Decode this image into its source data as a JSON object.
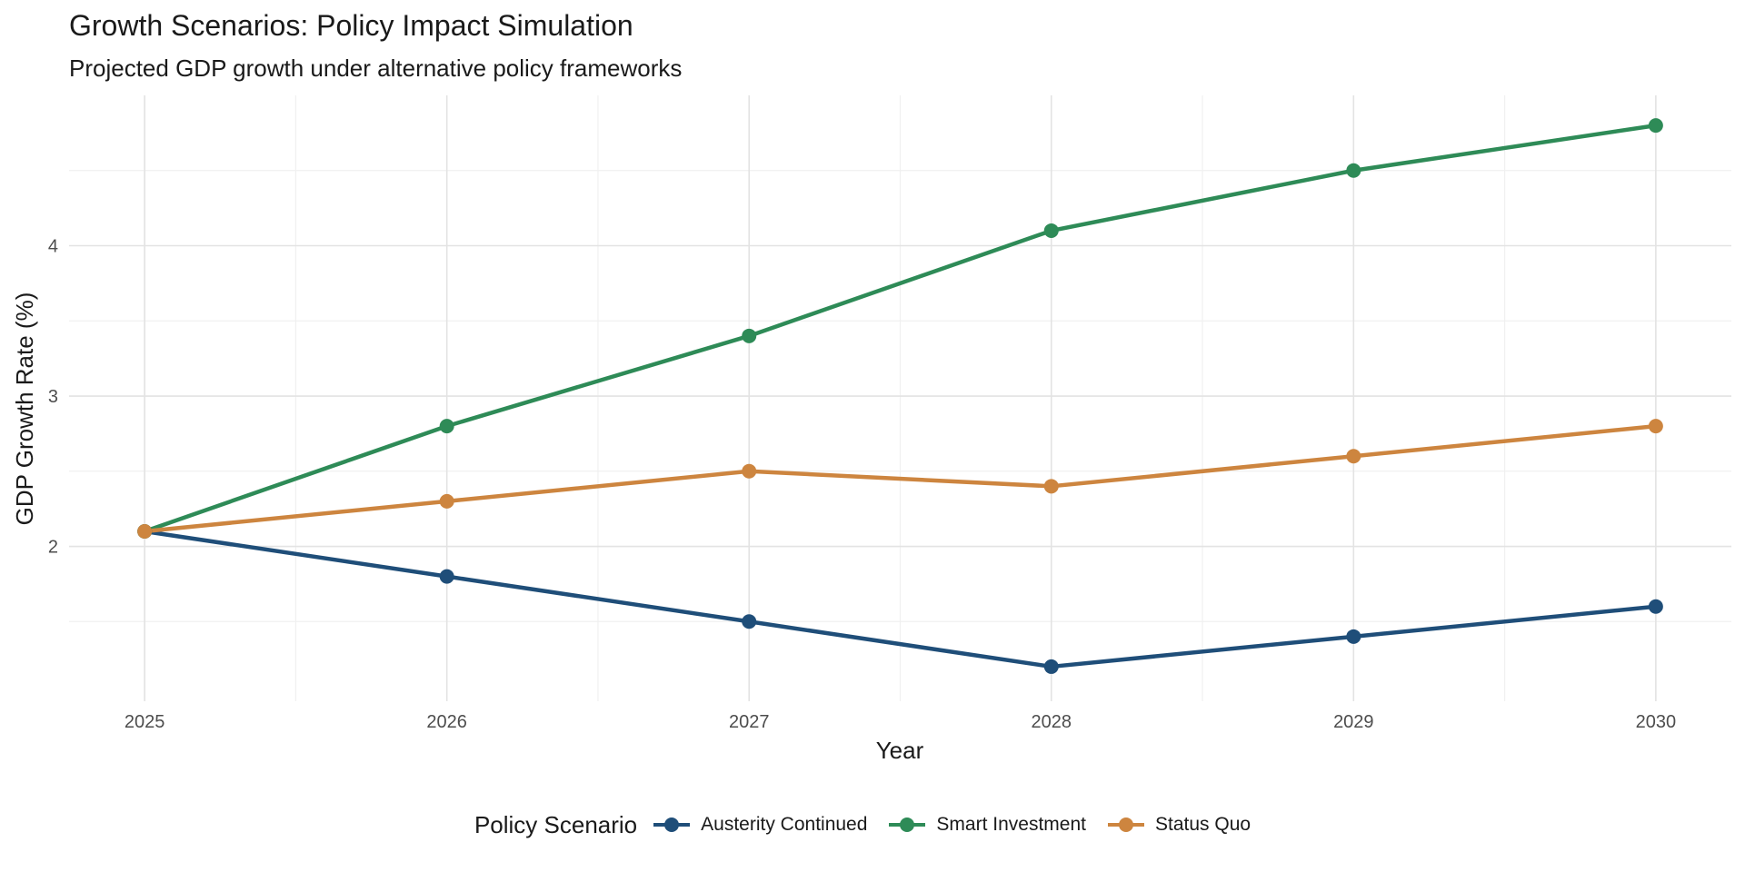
{
  "chart_data": {
    "type": "line",
    "title": "Growth Scenarios: Policy Impact Simulation",
    "subtitle": "Projected GDP growth under alternative policy frameworks",
    "xlabel": "Year",
    "ylabel": "GDP Growth Rate (%)",
    "x": [
      2025,
      2026,
      2027,
      2028,
      2029,
      2030
    ],
    "xlim": [
      2024.75,
      2030.25
    ],
    "ylim": [
      0.97,
      5.0
    ],
    "yticks": [
      2,
      3,
      4
    ],
    "yminor": [
      1.5,
      2.5,
      3.5,
      4.5
    ],
    "grid": true,
    "legend": {
      "title": "Policy Scenario",
      "placement": "bottom"
    },
    "series": [
      {
        "name": "Austerity Continued",
        "color": "#1f4e79",
        "values": [
          2.1,
          1.8,
          1.5,
          1.2,
          1.4,
          1.6
        ]
      },
      {
        "name": "Smart Investment",
        "color": "#2e8b57",
        "values": [
          2.1,
          2.8,
          3.4,
          4.1,
          4.5,
          4.8
        ]
      },
      {
        "name": "Status Quo",
        "color": "#cd853f",
        "values": [
          2.1,
          2.3,
          2.5,
          2.4,
          2.6,
          2.8
        ]
      }
    ]
  }
}
